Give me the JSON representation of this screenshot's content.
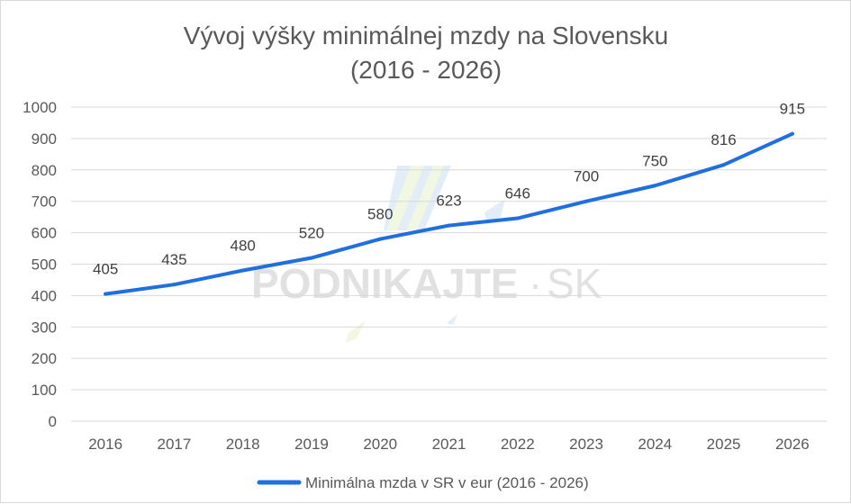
{
  "chart_data": {
    "type": "line",
    "title": "Vývoj výšky minimálnej mzdy na Slovensku",
    "subtitle": "(2016 - 2026)",
    "categories": [
      "2016",
      "2017",
      "2018",
      "2019",
      "2020",
      "2021",
      "2022",
      "2023",
      "2024",
      "2025",
      "2026"
    ],
    "series": [
      {
        "name": "Minimálna mzda v SR v eur (2016 - 2026)",
        "values": [
          405,
          435,
          480,
          520,
          580,
          623,
          646,
          700,
          750,
          816,
          915
        ],
        "color": "#1f6fe0"
      }
    ],
    "ylim": [
      0,
      1000
    ],
    "yticks": [
      "0",
      "100",
      "200",
      "300",
      "400",
      "500",
      "600",
      "700",
      "800",
      "900",
      "1000"
    ],
    "grid": true,
    "legend": "bottom",
    "watermark": {
      "left": "PODNIKAJTE",
      "dot": "·",
      "right": "SK"
    }
  }
}
